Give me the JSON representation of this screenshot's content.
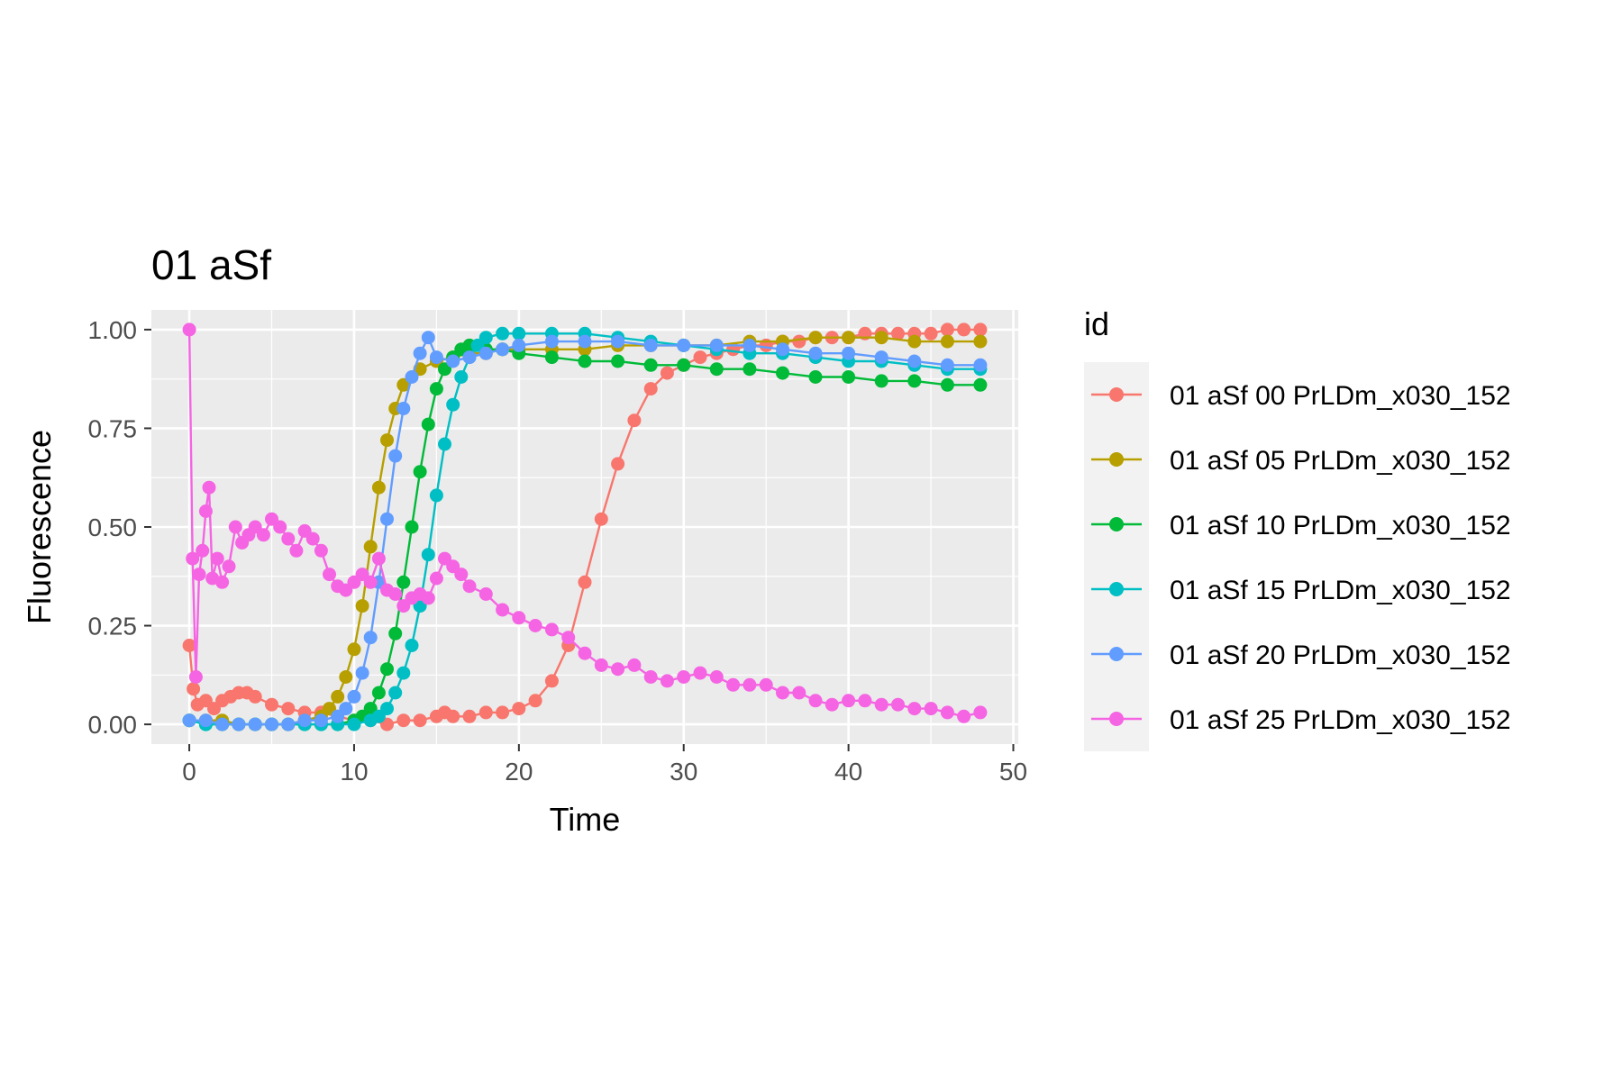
{
  "chart_data": {
    "type": "line",
    "title": "01 aSf",
    "xlabel": "Time",
    "ylabel": "Fluorescence",
    "xlim": [
      -2.3,
      50.3
    ],
    "ylim": [
      -0.05,
      1.05
    ],
    "x_ticks": [
      0,
      10,
      20,
      30,
      40,
      50
    ],
    "y_ticks": [
      0.0,
      0.25,
      0.5,
      0.75,
      1.0
    ],
    "x_tick_labels": [
      "0",
      "10",
      "20",
      "30",
      "40",
      "50"
    ],
    "y_tick_labels": [
      "0.00",
      "0.25",
      "0.50",
      "0.75",
      "1.00"
    ],
    "grid": true,
    "legend": {
      "title": "id",
      "position": "right"
    },
    "series": [
      {
        "name": "01 aSf 00 PrLDm_x030_152",
        "color": "#F8766D",
        "points": [
          [
            0,
            0.2
          ],
          [
            0.25,
            0.09
          ],
          [
            0.5,
            0.05
          ],
          [
            1,
            0.06
          ],
          [
            1.5,
            0.04
          ],
          [
            2,
            0.06
          ],
          [
            2.5,
            0.07
          ],
          [
            3,
            0.08
          ],
          [
            3.5,
            0.08
          ],
          [
            4,
            0.07
          ],
          [
            5,
            0.05
          ],
          [
            6,
            0.04
          ],
          [
            7,
            0.03
          ],
          [
            8,
            0.03
          ],
          [
            9,
            0.02
          ],
          [
            10,
            0.01
          ],
          [
            11,
            0.01
          ],
          [
            12,
            0.0
          ],
          [
            13,
            0.01
          ],
          [
            14,
            0.01
          ],
          [
            15,
            0.02
          ],
          [
            15.5,
            0.03
          ],
          [
            16,
            0.02
          ],
          [
            17,
            0.02
          ],
          [
            18,
            0.03
          ],
          [
            19,
            0.03
          ],
          [
            20,
            0.04
          ],
          [
            21,
            0.06
          ],
          [
            22,
            0.11
          ],
          [
            23,
            0.2
          ],
          [
            24,
            0.36
          ],
          [
            25,
            0.52
          ],
          [
            26,
            0.66
          ],
          [
            27,
            0.77
          ],
          [
            28,
            0.85
          ],
          [
            29,
            0.89
          ],
          [
            30,
            0.91
          ],
          [
            31,
            0.93
          ],
          [
            32,
            0.94
          ],
          [
            33,
            0.95
          ],
          [
            34,
            0.96
          ],
          [
            35,
            0.96
          ],
          [
            36,
            0.97
          ],
          [
            37,
            0.97
          ],
          [
            38,
            0.98
          ],
          [
            39,
            0.98
          ],
          [
            40,
            0.98
          ],
          [
            41,
            0.99
          ],
          [
            42,
            0.99
          ],
          [
            43,
            0.99
          ],
          [
            44,
            0.99
          ],
          [
            45,
            0.99
          ],
          [
            46,
            1.0
          ],
          [
            47,
            1.0
          ],
          [
            48,
            1.0
          ]
        ]
      },
      {
        "name": "01 aSf 05 PrLDm_x030_152",
        "color": "#B79F00",
        "points": [
          [
            0,
            0.01
          ],
          [
            1,
            0.01
          ],
          [
            2,
            0.01
          ],
          [
            3,
            0.0
          ],
          [
            4,
            0.0
          ],
          [
            5,
            0.0
          ],
          [
            6,
            0.0
          ],
          [
            7,
            0.01
          ],
          [
            8,
            0.02
          ],
          [
            8.5,
            0.04
          ],
          [
            9,
            0.07
          ],
          [
            9.5,
            0.12
          ],
          [
            10,
            0.19
          ],
          [
            10.5,
            0.3
          ],
          [
            11,
            0.45
          ],
          [
            11.5,
            0.6
          ],
          [
            12,
            0.72
          ],
          [
            12.5,
            0.8
          ],
          [
            13,
            0.86
          ],
          [
            14,
            0.9
          ],
          [
            15,
            0.92
          ],
          [
            16,
            0.93
          ],
          [
            17,
            0.94
          ],
          [
            18,
            0.94
          ],
          [
            19,
            0.95
          ],
          [
            20,
            0.95
          ],
          [
            22,
            0.95
          ],
          [
            24,
            0.95
          ],
          [
            26,
            0.96
          ],
          [
            28,
            0.96
          ],
          [
            30,
            0.96
          ],
          [
            32,
            0.96
          ],
          [
            34,
            0.97
          ],
          [
            36,
            0.97
          ],
          [
            38,
            0.98
          ],
          [
            40,
            0.98
          ],
          [
            42,
            0.98
          ],
          [
            44,
            0.97
          ],
          [
            46,
            0.97
          ],
          [
            48,
            0.97
          ]
        ]
      },
      {
        "name": "01 aSf 10 PrLDm_x030_152",
        "color": "#00BA38",
        "points": [
          [
            0,
            0.01
          ],
          [
            1,
            0.0
          ],
          [
            2,
            0.0
          ],
          [
            3,
            0.0
          ],
          [
            4,
            0.0
          ],
          [
            5,
            0.0
          ],
          [
            6,
            0.0
          ],
          [
            7,
            0.0
          ],
          [
            8,
            0.0
          ],
          [
            9,
            0.0
          ],
          [
            10,
            0.01
          ],
          [
            10.5,
            0.02
          ],
          [
            11,
            0.04
          ],
          [
            11.5,
            0.08
          ],
          [
            12,
            0.14
          ],
          [
            12.5,
            0.23
          ],
          [
            13,
            0.36
          ],
          [
            13.5,
            0.5
          ],
          [
            14,
            0.64
          ],
          [
            14.5,
            0.76
          ],
          [
            15,
            0.85
          ],
          [
            15.5,
            0.9
          ],
          [
            16,
            0.93
          ],
          [
            16.5,
            0.95
          ],
          [
            17,
            0.96
          ],
          [
            18,
            0.95
          ],
          [
            19,
            0.95
          ],
          [
            20,
            0.94
          ],
          [
            22,
            0.93
          ],
          [
            24,
            0.92
          ],
          [
            26,
            0.92
          ],
          [
            28,
            0.91
          ],
          [
            30,
            0.91
          ],
          [
            32,
            0.9
          ],
          [
            34,
            0.9
          ],
          [
            36,
            0.89
          ],
          [
            38,
            0.88
          ],
          [
            40,
            0.88
          ],
          [
            42,
            0.87
          ],
          [
            44,
            0.87
          ],
          [
            46,
            0.86
          ],
          [
            48,
            0.86
          ]
        ]
      },
      {
        "name": "01 aSf 15 PrLDm_x030_152",
        "color": "#00BFC4",
        "points": [
          [
            0,
            0.01
          ],
          [
            1,
            0.0
          ],
          [
            2,
            0.0
          ],
          [
            3,
            0.0
          ],
          [
            4,
            0.0
          ],
          [
            5,
            0.0
          ],
          [
            6,
            0.0
          ],
          [
            7,
            0.0
          ],
          [
            8,
            0.0
          ],
          [
            9,
            0.0
          ],
          [
            10,
            0.0
          ],
          [
            11,
            0.01
          ],
          [
            11.5,
            0.02
          ],
          [
            12,
            0.04
          ],
          [
            12.5,
            0.08
          ],
          [
            13,
            0.13
          ],
          [
            13.5,
            0.2
          ],
          [
            14,
            0.3
          ],
          [
            14.5,
            0.43
          ],
          [
            15,
            0.58
          ],
          [
            15.5,
            0.71
          ],
          [
            16,
            0.81
          ],
          [
            16.5,
            0.88
          ],
          [
            17,
            0.93
          ],
          [
            17.5,
            0.96
          ],
          [
            18,
            0.98
          ],
          [
            19,
            0.99
          ],
          [
            20,
            0.99
          ],
          [
            22,
            0.99
          ],
          [
            24,
            0.99
          ],
          [
            26,
            0.98
          ],
          [
            28,
            0.97
          ],
          [
            30,
            0.96
          ],
          [
            32,
            0.95
          ],
          [
            34,
            0.94
          ],
          [
            36,
            0.94
          ],
          [
            38,
            0.93
          ],
          [
            40,
            0.92
          ],
          [
            42,
            0.92
          ],
          [
            44,
            0.91
          ],
          [
            46,
            0.9
          ],
          [
            48,
            0.9
          ]
        ]
      },
      {
        "name": "01 aSf 20 PrLDm_x030_152",
        "color": "#619CFF",
        "points": [
          [
            0,
            0.01
          ],
          [
            1,
            0.01
          ],
          [
            2,
            0.0
          ],
          [
            3,
            0.0
          ],
          [
            4,
            0.0
          ],
          [
            5,
            0.0
          ],
          [
            6,
            0.0
          ],
          [
            7,
            0.01
          ],
          [
            8,
            0.01
          ],
          [
            9,
            0.02
          ],
          [
            9.5,
            0.04
          ],
          [
            10,
            0.07
          ],
          [
            10.5,
            0.13
          ],
          [
            11,
            0.22
          ],
          [
            11.5,
            0.36
          ],
          [
            12,
            0.52
          ],
          [
            12.5,
            0.68
          ],
          [
            13,
            0.8
          ],
          [
            13.5,
            0.88
          ],
          [
            14,
            0.94
          ],
          [
            14.5,
            0.98
          ],
          [
            15,
            0.93
          ],
          [
            16,
            0.92
          ],
          [
            17,
            0.93
          ],
          [
            18,
            0.94
          ],
          [
            19,
            0.95
          ],
          [
            20,
            0.96
          ],
          [
            22,
            0.97
          ],
          [
            24,
            0.97
          ],
          [
            26,
            0.97
          ],
          [
            28,
            0.96
          ],
          [
            30,
            0.96
          ],
          [
            32,
            0.96
          ],
          [
            34,
            0.96
          ],
          [
            36,
            0.95
          ],
          [
            38,
            0.94
          ],
          [
            40,
            0.94
          ],
          [
            42,
            0.93
          ],
          [
            44,
            0.92
          ],
          [
            46,
            0.91
          ],
          [
            48,
            0.91
          ]
        ]
      },
      {
        "name": "01 aSf 25 PrLDm_x030_152",
        "color": "#F564E3",
        "points": [
          [
            0,
            1.0
          ],
          [
            0.2,
            0.42
          ],
          [
            0.4,
            0.12
          ],
          [
            0.6,
            0.38
          ],
          [
            0.8,
            0.44
          ],
          [
            1,
            0.54
          ],
          [
            1.2,
            0.6
          ],
          [
            1.4,
            0.37
          ],
          [
            1.7,
            0.42
          ],
          [
            2,
            0.36
          ],
          [
            2.4,
            0.4
          ],
          [
            2.8,
            0.5
          ],
          [
            3.2,
            0.46
          ],
          [
            3.6,
            0.48
          ],
          [
            4,
            0.5
          ],
          [
            4.5,
            0.48
          ],
          [
            5,
            0.52
          ],
          [
            5.5,
            0.5
          ],
          [
            6,
            0.47
          ],
          [
            6.5,
            0.44
          ],
          [
            7,
            0.49
          ],
          [
            7.5,
            0.47
          ],
          [
            8,
            0.44
          ],
          [
            8.5,
            0.38
          ],
          [
            9,
            0.35
          ],
          [
            9.5,
            0.34
          ],
          [
            10,
            0.36
          ],
          [
            10.5,
            0.38
          ],
          [
            11,
            0.36
          ],
          [
            11.5,
            0.42
          ],
          [
            12,
            0.34
          ],
          [
            12.5,
            0.33
          ],
          [
            13,
            0.3
          ],
          [
            13.5,
            0.32
          ],
          [
            14,
            0.33
          ],
          [
            14.5,
            0.32
          ],
          [
            15,
            0.37
          ],
          [
            15.5,
            0.42
          ],
          [
            16,
            0.4
          ],
          [
            16.5,
            0.38
          ],
          [
            17,
            0.35
          ],
          [
            18,
            0.33
          ],
          [
            19,
            0.29
          ],
          [
            20,
            0.27
          ],
          [
            21,
            0.25
          ],
          [
            22,
            0.24
          ],
          [
            23,
            0.22
          ],
          [
            24,
            0.18
          ],
          [
            25,
            0.15
          ],
          [
            26,
            0.14
          ],
          [
            27,
            0.15
          ],
          [
            28,
            0.12
          ],
          [
            29,
            0.11
          ],
          [
            30,
            0.12
          ],
          [
            31,
            0.13
          ],
          [
            32,
            0.12
          ],
          [
            33,
            0.1
          ],
          [
            34,
            0.1
          ],
          [
            35,
            0.1
          ],
          [
            36,
            0.08
          ],
          [
            37,
            0.08
          ],
          [
            38,
            0.06
          ],
          [
            39,
            0.05
          ],
          [
            40,
            0.06
          ],
          [
            41,
            0.06
          ],
          [
            42,
            0.05
          ],
          [
            43,
            0.05
          ],
          [
            44,
            0.04
          ],
          [
            45,
            0.04
          ],
          [
            46,
            0.03
          ],
          [
            47,
            0.02
          ],
          [
            48,
            0.03
          ]
        ]
      }
    ]
  }
}
